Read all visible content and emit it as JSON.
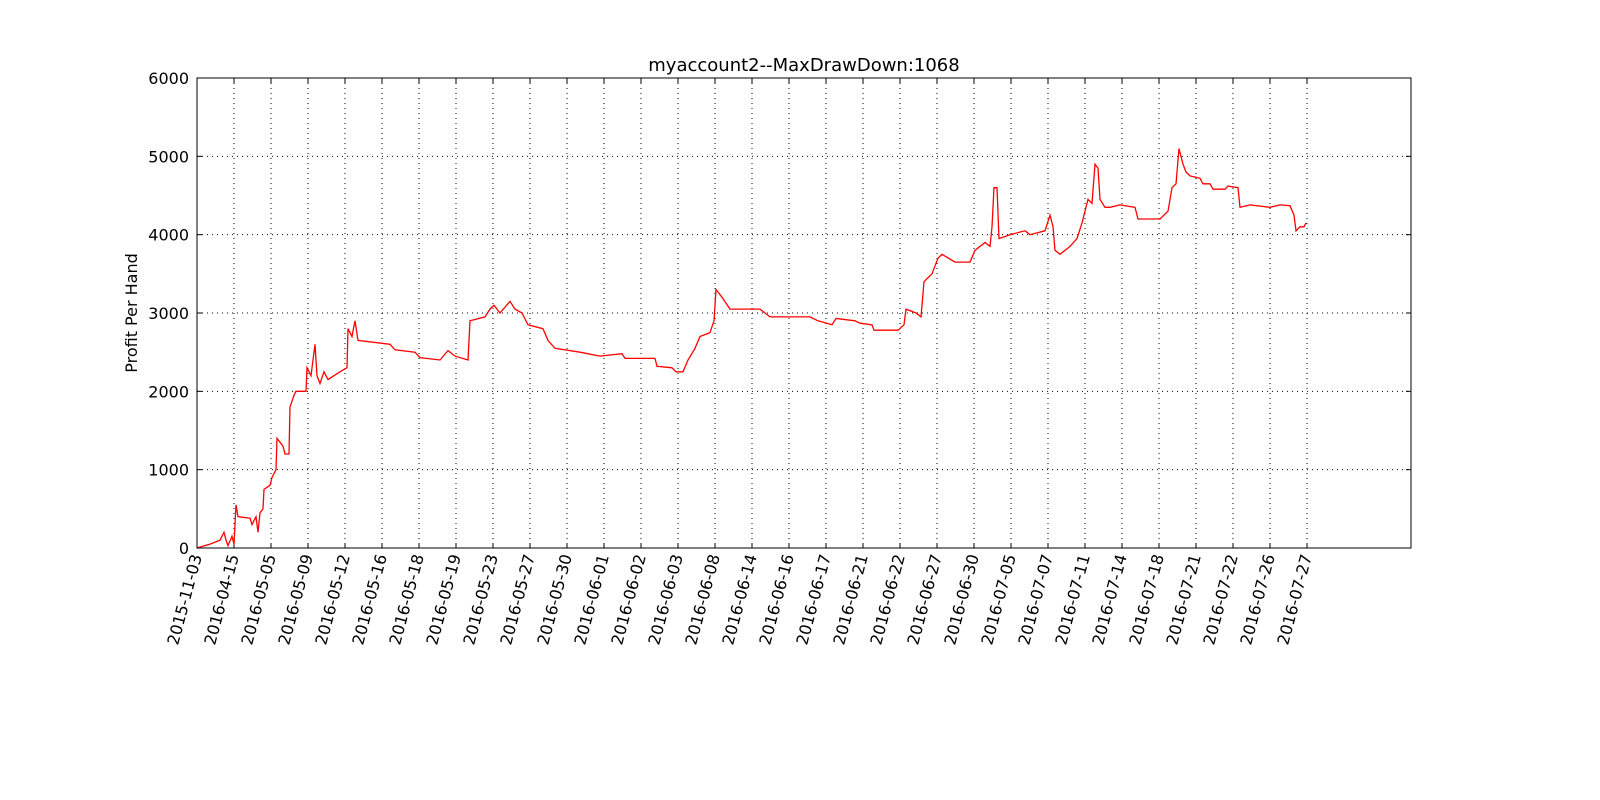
{
  "chart_data": {
    "type": "line",
    "title": "myaccount2--MaxDrawDown:1068",
    "y_label": "Profit Per Hand",
    "grid": true,
    "color": "#ff0000",
    "xlim": [
      0,
      1214
    ],
    "ylim": [
      0,
      6000
    ],
    "yticks": [
      0,
      1000,
      2000,
      3000,
      4000,
      5000,
      6000
    ],
    "xticks": [
      {
        "value": 0,
        "label": "2015-11-03"
      },
      {
        "value": 37,
        "label": "2016-04-15"
      },
      {
        "value": 74,
        "label": "2016-05-05"
      },
      {
        "value": 111,
        "label": "2016-05-09"
      },
      {
        "value": 148,
        "label": "2016-05-12"
      },
      {
        "value": 185,
        "label": "2016-05-16"
      },
      {
        "value": 222,
        "label": "2016-05-18"
      },
      {
        "value": 259,
        "label": "2016-05-19"
      },
      {
        "value": 296,
        "label": "2016-05-23"
      },
      {
        "value": 333,
        "label": "2016-05-27"
      },
      {
        "value": 370,
        "label": "2016-05-30"
      },
      {
        "value": 407,
        "label": "2016-06-01"
      },
      {
        "value": 444,
        "label": "2016-06-02"
      },
      {
        "value": 481,
        "label": "2016-06-03"
      },
      {
        "value": 518,
        "label": "2016-06-08"
      },
      {
        "value": 555,
        "label": "2016-06-14"
      },
      {
        "value": 592,
        "label": "2016-06-16"
      },
      {
        "value": 629,
        "label": "2016-06-17"
      },
      {
        "value": 666,
        "label": "2016-06-21"
      },
      {
        "value": 703,
        "label": "2016-06-22"
      },
      {
        "value": 740,
        "label": "2016-06-27"
      },
      {
        "value": 777,
        "label": "2016-06-30"
      },
      {
        "value": 814,
        "label": "2016-07-05"
      },
      {
        "value": 851,
        "label": "2016-07-07"
      },
      {
        "value": 888,
        "label": "2016-07-11"
      },
      {
        "value": 925,
        "label": "2016-07-14"
      },
      {
        "value": 962,
        "label": "2016-07-18"
      },
      {
        "value": 999,
        "label": "2016-07-21"
      },
      {
        "value": 1036,
        "label": "2016-07-22"
      },
      {
        "value": 1073,
        "label": "2016-07-26"
      },
      {
        "value": 1110,
        "label": "2016-07-27"
      }
    ],
    "x": [
      0,
      13,
      23,
      27,
      29,
      31,
      35,
      37,
      39,
      41,
      53,
      55,
      59,
      61,
      63,
      66,
      67,
      73,
      75,
      79,
      80,
      86,
      88,
      92,
      93,
      97,
      99,
      109,
      110,
      114,
      118,
      120,
      123,
      127,
      131,
      143,
      150,
      151,
      155,
      158,
      161,
      193,
      198,
      218,
      223,
      243,
      251,
      258,
      271,
      273,
      288,
      293,
      297,
      303,
      313,
      318,
      325,
      331,
      346,
      351,
      358,
      383,
      403,
      425,
      428,
      458,
      460,
      475,
      479,
      486,
      491,
      498,
      503,
      513,
      517,
      519,
      525,
      533,
      563,
      573,
      613,
      621,
      635,
      639,
      658,
      663,
      675,
      677,
      701,
      707,
      709,
      719,
      724,
      727,
      735,
      741,
      745,
      758,
      773,
      778,
      788,
      793,
      795,
      797,
      800,
      802,
      813,
      828,
      833,
      848,
      853,
      856,
      858,
      863,
      873,
      880,
      885,
      891,
      895,
      898,
      901,
      903,
      908,
      913,
      923,
      938,
      941,
      963,
      971,
      975,
      979,
      982,
      986,
      989,
      993,
      1003,
      1006,
      1013,
      1016,
      1028,
      1031,
      1041,
      1043,
      1053,
      1073,
      1083,
      1093,
      1097,
      1099,
      1103,
      1107,
      1109
    ],
    "values": [
      0,
      50,
      100,
      200,
      100,
      30,
      150,
      50,
      550,
      400,
      380,
      300,
      400,
      200,
      450,
      500,
      750,
      800,
      900,
      1000,
      1400,
      1300,
      1200,
      1200,
      1800,
      1950,
      2000,
      2000,
      2300,
      2200,
      2600,
      2200,
      2100,
      2250,
      2150,
      2250,
      2300,
      2800,
      2700,
      2900,
      2650,
      2600,
      2530,
      2500,
      2430,
      2400,
      2520,
      2450,
      2400,
      2900,
      2950,
      3050,
      3100,
      3000,
      3150,
      3050,
      3000,
      2850,
      2800,
      2650,
      2550,
      2500,
      2450,
      2480,
      2420,
      2420,
      2320,
      2300,
      2250,
      2250,
      2400,
      2550,
      2700,
      2750,
      2900,
      3300,
      3200,
      3050,
      3050,
      2950,
      2950,
      2900,
      2850,
      2930,
      2900,
      2870,
      2850,
      2780,
      2780,
      2850,
      3050,
      3000,
      2950,
      3400,
      3500,
      3700,
      3750,
      3650,
      3650,
      3800,
      3900,
      3850,
      4100,
      4600,
      4600,
      3950,
      4000,
      4050,
      4000,
      4050,
      4250,
      4100,
      3800,
      3750,
      3850,
      3950,
      4150,
      4450,
      4400,
      4900,
      4850,
      4450,
      4350,
      4350,
      4380,
      4350,
      4200,
      4200,
      4300,
      4600,
      4650,
      5100,
      4900,
      4800,
      4750,
      4720,
      4650,
      4650,
      4580,
      4580,
      4620,
      4600,
      4350,
      4380,
      4350,
      4380,
      4370,
      4250,
      4050,
      4100,
      4100,
      4150
    ]
  }
}
